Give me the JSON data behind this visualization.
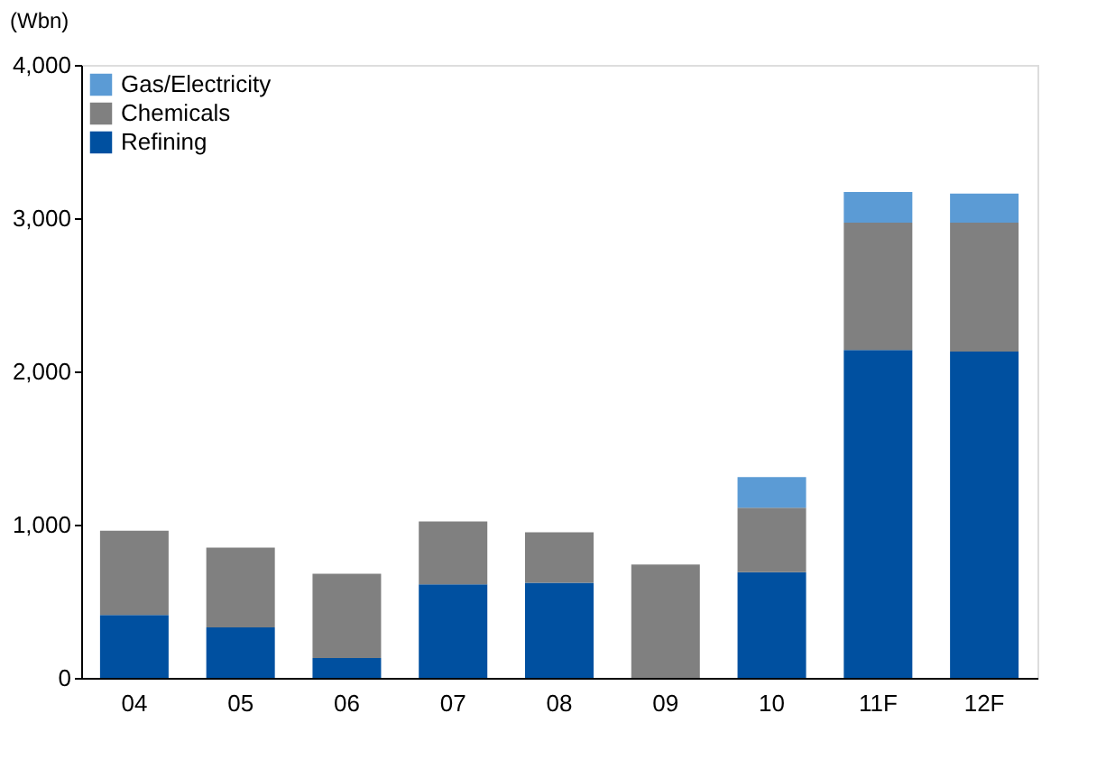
{
  "chart_data": {
    "type": "bar",
    "stacked": true,
    "ylabel": "(Wbn)",
    "categories": [
      "04",
      "05",
      "06",
      "07",
      "08",
      "09",
      "10",
      "11F",
      "12F"
    ],
    "series": [
      {
        "name": "Refining",
        "color": "#0050a0",
        "values": [
          410,
          330,
          130,
          610,
          620,
          0,
          690,
          2140,
          2130
        ]
      },
      {
        "name": "Chemicals",
        "color": "#808080",
        "values": [
          550,
          520,
          550,
          410,
          330,
          740,
          420,
          830,
          840
        ]
      },
      {
        "name": "Gas/Electricity",
        "color": "#5b9bd5",
        "values": [
          0,
          0,
          0,
          0,
          0,
          0,
          200,
          200,
          190
        ]
      }
    ],
    "ylim": [
      0,
      4000
    ],
    "yticks": [
      0,
      {
        "value": 1000,
        "label": "1,000"
      },
      {
        "value": 2000,
        "label": "2,000"
      },
      {
        "value": 3000,
        "label": "3,000"
      },
      {
        "value": 4000,
        "label": "4,000"
      }
    ],
    "grid": false,
    "legend": "top left"
  }
}
